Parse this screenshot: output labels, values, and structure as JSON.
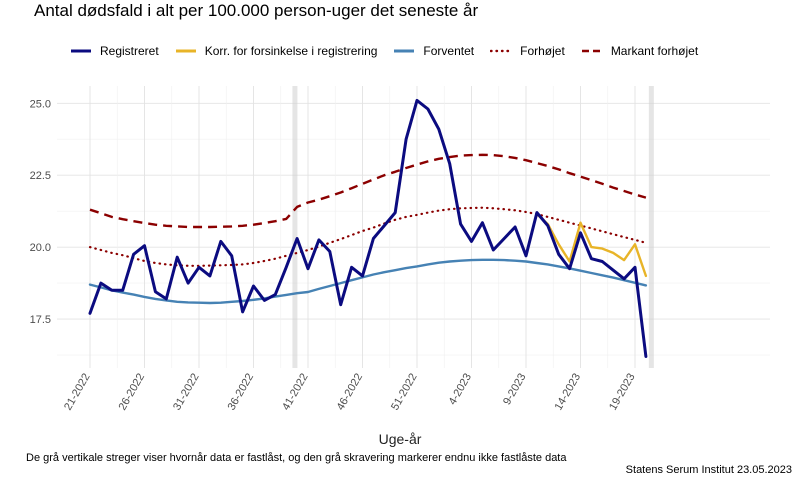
{
  "chart_data": {
    "type": "line",
    "title": "Antal dødsfald i alt per 100.000 person-uger det seneste år",
    "xlabel": "Uge-år",
    "ylabel": "",
    "ylim": [
      15.8,
      25.6
    ],
    "yticks": [
      17.5,
      20.0,
      22.5,
      25.0
    ],
    "ytick_labels": [
      "17.5",
      "20.0",
      "22.5",
      "25.0"
    ],
    "grid": true,
    "legend_position": "top",
    "x": [
      "21-2022",
      "22-2022",
      "23-2022",
      "24-2022",
      "25-2022",
      "26-2022",
      "27-2022",
      "28-2022",
      "29-2022",
      "30-2022",
      "31-2022",
      "32-2022",
      "33-2022",
      "34-2022",
      "35-2022",
      "36-2022",
      "37-2022",
      "38-2022",
      "39-2022",
      "40-2022",
      "41-2022",
      "42-2022",
      "43-2022",
      "44-2022",
      "45-2022",
      "46-2022",
      "47-2022",
      "48-2022",
      "49-2022",
      "50-2022",
      "51-2022",
      "52-2022",
      "1-2023",
      "2-2023",
      "3-2023",
      "4-2023",
      "5-2023",
      "6-2023",
      "7-2023",
      "8-2023",
      "9-2023",
      "10-2023",
      "11-2023",
      "12-2023",
      "13-2023",
      "14-2023",
      "15-2023",
      "16-2023",
      "17-2023",
      "18-2023",
      "19-2023",
      "20-2023"
    ],
    "x_tick_labels": [
      "21-2022",
      "26-2022",
      "31-2022",
      "36-2022",
      "41-2022",
      "46-2022",
      "51-2022",
      "4-2023",
      "9-2023",
      "14-2023",
      "19-2023"
    ],
    "x_tick_indices": [
      0,
      5,
      10,
      15,
      20,
      25,
      30,
      35,
      40,
      45,
      50
    ],
    "fixed_marker_indices": [
      18.8,
      51.5
    ],
    "series": [
      {
        "name": "Registreret",
        "color": "#0b0b80",
        "dash": "solid",
        "values": [
          17.7,
          18.75,
          18.5,
          18.5,
          19.75,
          20.05,
          18.45,
          18.2,
          19.65,
          18.75,
          19.3,
          19.0,
          20.2,
          19.7,
          17.75,
          18.65,
          18.15,
          18.35,
          19.3,
          20.3,
          19.25,
          20.25,
          19.85,
          18.0,
          19.3,
          19.0,
          20.3,
          20.75,
          21.2,
          23.75,
          25.1,
          24.8,
          24.1,
          22.9,
          20.8,
          20.2,
          20.85,
          19.9,
          20.3,
          20.7,
          19.7,
          21.2,
          20.75,
          19.75,
          19.25,
          20.5,
          19.6,
          19.5,
          19.2,
          18.9,
          19.3,
          16.2
        ]
      },
      {
        "name": "Korr. for forsinkelse i registrering",
        "color": "#e8b428",
        "dash": "solid",
        "values": [
          null,
          null,
          null,
          null,
          null,
          null,
          null,
          null,
          null,
          null,
          null,
          null,
          null,
          null,
          null,
          null,
          null,
          null,
          null,
          null,
          null,
          null,
          null,
          null,
          null,
          null,
          null,
          null,
          null,
          null,
          null,
          null,
          null,
          null,
          null,
          null,
          null,
          null,
          null,
          null,
          null,
          21.15,
          20.8,
          20.1,
          19.5,
          20.85,
          20.0,
          19.95,
          19.8,
          19.55,
          20.1,
          19.0
        ]
      },
      {
        "name": "Forventet",
        "color": "#4682b4",
        "dash": "solid",
        "values": [
          18.7,
          18.6,
          18.5,
          18.42,
          18.35,
          18.27,
          18.2,
          18.15,
          18.1,
          18.08,
          18.07,
          18.06,
          18.07,
          18.1,
          18.13,
          18.17,
          18.22,
          18.28,
          18.34,
          18.4,
          18.44,
          18.55,
          18.65,
          18.75,
          18.85,
          18.95,
          19.05,
          19.13,
          19.2,
          19.27,
          19.33,
          19.4,
          19.46,
          19.5,
          19.53,
          19.55,
          19.56,
          19.56,
          19.55,
          19.53,
          19.5,
          19.45,
          19.4,
          19.33,
          19.26,
          19.18,
          19.1,
          19.02,
          18.94,
          18.85,
          18.76,
          18.67
        ]
      },
      {
        "name": "Forhøjet",
        "color": "#8b0000",
        "dash": "dotted",
        "values": [
          20.0,
          19.9,
          19.8,
          19.72,
          19.62,
          19.52,
          19.45,
          19.4,
          19.37,
          19.35,
          19.35,
          19.36,
          19.37,
          19.38,
          19.4,
          19.45,
          19.52,
          19.6,
          19.7,
          19.8,
          19.9,
          20.02,
          20.15,
          20.28,
          20.42,
          20.56,
          20.68,
          20.82,
          20.95,
          21.05,
          21.12,
          21.2,
          21.27,
          21.32,
          21.35,
          21.36,
          21.37,
          21.35,
          21.32,
          21.28,
          21.22,
          21.15,
          21.05,
          20.95,
          20.85,
          20.75,
          20.65,
          20.55,
          20.45,
          20.35,
          20.25,
          20.15
        ]
      },
      {
        "name": "Markant forhøjet",
        "color": "#8b0000",
        "dash": "dashed",
        "values": [
          21.3,
          21.18,
          21.05,
          20.97,
          20.9,
          20.84,
          20.78,
          20.74,
          20.72,
          20.7,
          20.7,
          20.7,
          20.71,
          20.72,
          20.74,
          20.78,
          20.84,
          20.9,
          20.98,
          21.4,
          21.55,
          21.65,
          21.77,
          21.9,
          22.05,
          22.2,
          22.35,
          22.5,
          22.62,
          22.75,
          22.87,
          22.98,
          23.07,
          23.13,
          23.18,
          23.2,
          23.21,
          23.2,
          23.16,
          23.1,
          23.02,
          22.92,
          22.82,
          22.7,
          22.57,
          22.45,
          22.33,
          22.2,
          22.07,
          21.95,
          21.83,
          21.72
        ]
      }
    ]
  },
  "caption": "De grå vertikale streger viser hvornår data er fastlåst, og den grå skravering markerer endnu ikke fastlåste data",
  "source": "Statens Serum Institut  23.05.2023"
}
